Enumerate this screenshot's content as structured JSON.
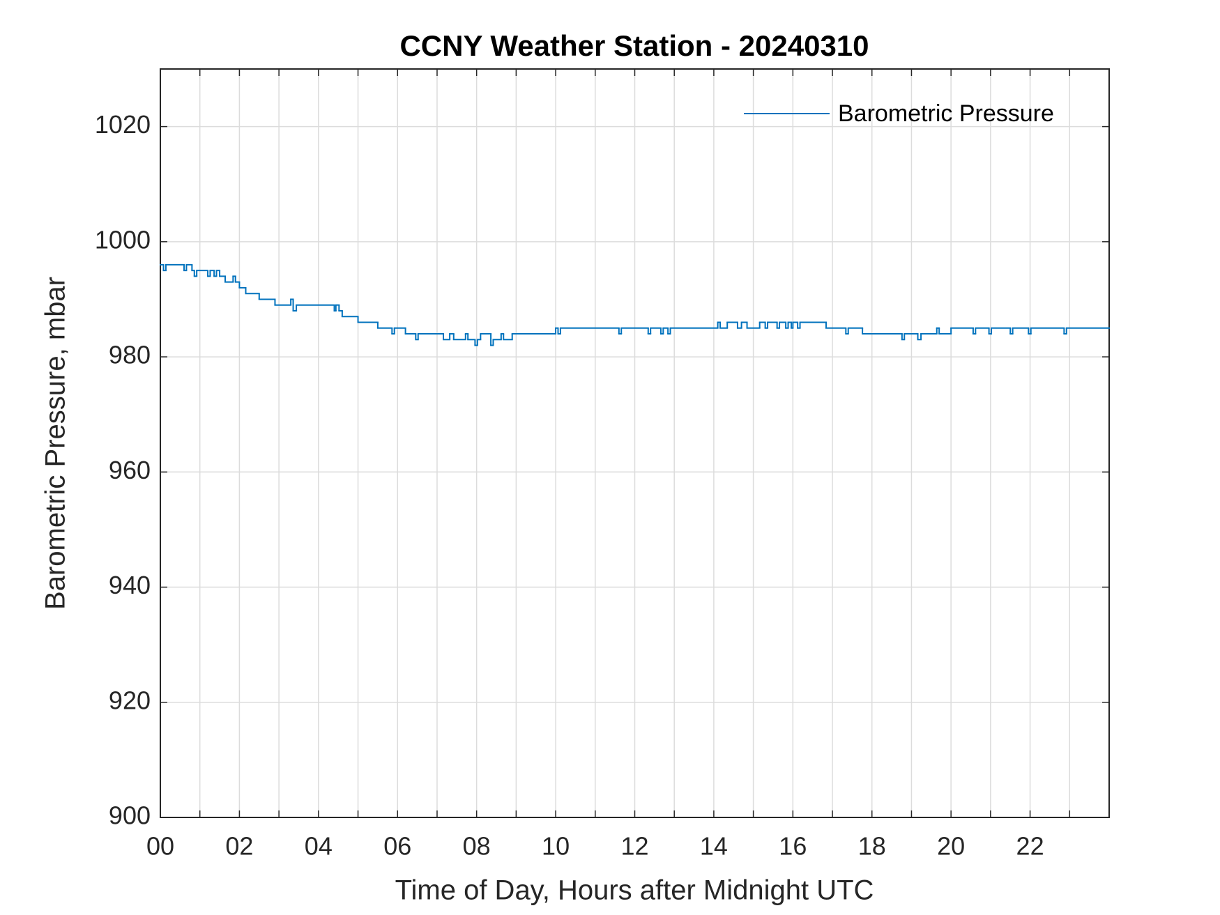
{
  "chart_data": {
    "type": "line",
    "title": "CCNY Weather Station - 20240310",
    "x_label": "Time of Day, Hours after Midnight UTC",
    "y_label": "Barometric Pressure, mbar",
    "xlim": [
      0,
      24
    ],
    "xticks": [
      {
        "value": 0,
        "label": "00"
      },
      {
        "value": 2,
        "label": "02"
      },
      {
        "value": 4,
        "label": "04"
      },
      {
        "value": 6,
        "label": "06"
      },
      {
        "value": 8,
        "label": "08"
      },
      {
        "value": 10,
        "label": "10"
      },
      {
        "value": 12,
        "label": "12"
      },
      {
        "value": 14,
        "label": "14"
      },
      {
        "value": 16,
        "label": "16"
      },
      {
        "value": 18,
        "label": "18"
      },
      {
        "value": 20,
        "label": "20"
      },
      {
        "value": 22,
        "label": "22"
      }
    ],
    "xminor_ticks": [
      1,
      3,
      5,
      7,
      9,
      11,
      13,
      15,
      17,
      19,
      21,
      23
    ],
    "ylim": [
      900,
      1030
    ],
    "yticks": [
      900,
      920,
      940,
      960,
      980,
      1000,
      1020
    ],
    "grid": true,
    "step": "post",
    "legend": "northeast",
    "series": [
      {
        "name": "Barometric Pressure",
        "color": "#0072bd",
        "x": [
          0,
          0.08,
          0.14,
          0.6,
          0.66,
          0.8,
          0.86,
          0.92,
          1.2,
          1.26,
          1.36,
          1.42,
          1.5,
          1.64,
          1.84,
          1.9,
          2.0,
          2.16,
          2.5,
          2.9,
          3.3,
          3.36,
          3.44,
          4.4,
          4.44,
          4.52,
          4.6,
          5.0,
          5.5,
          5.86,
          5.92,
          6.2,
          6.46,
          6.52,
          7.16,
          7.32,
          7.42,
          7.72,
          7.78,
          7.96,
          8.02,
          8.1,
          8.36,
          8.42,
          8.62,
          8.68,
          8.9,
          10.0,
          10.06,
          10.12,
          11.6,
          11.66,
          12.34,
          12.4,
          12.66,
          12.72,
          12.84,
          12.9,
          14.1,
          14.16,
          14.34,
          14.6,
          14.7,
          14.84,
          15.16,
          15.3,
          15.36,
          15.6,
          15.66,
          15.82,
          15.88,
          15.96,
          16.0,
          16.12,
          16.18,
          16.84,
          17.34,
          17.4,
          17.76,
          18.76,
          18.82,
          19.16,
          19.24,
          19.64,
          19.7,
          20.0,
          20.56,
          20.62,
          20.96,
          21.02,
          21.5,
          21.56,
          21.96,
          22.02,
          22.86,
          22.92,
          24
        ],
        "values": [
          996,
          995,
          996,
          995,
          996,
          995,
          994,
          995,
          994,
          995,
          994,
          995,
          994,
          993,
          994,
          993,
          992,
          991,
          990,
          989,
          990,
          988,
          989,
          988,
          989,
          988,
          987,
          986,
          985,
          984,
          985,
          984,
          983,
          984,
          983,
          984,
          983,
          984,
          983,
          982,
          983,
          984,
          982,
          983,
          984,
          983,
          984,
          985,
          984,
          985,
          984,
          985,
          984,
          985,
          984,
          985,
          984,
          985,
          986,
          985,
          986,
          985,
          986,
          985,
          986,
          985,
          986,
          985,
          986,
          985,
          986,
          985,
          986,
          985,
          986,
          985,
          984,
          985,
          984,
          983,
          984,
          983,
          984,
          985,
          984,
          985,
          984,
          985,
          984,
          985,
          984,
          985,
          984,
          985,
          984,
          985,
          985
        ]
      }
    ]
  }
}
